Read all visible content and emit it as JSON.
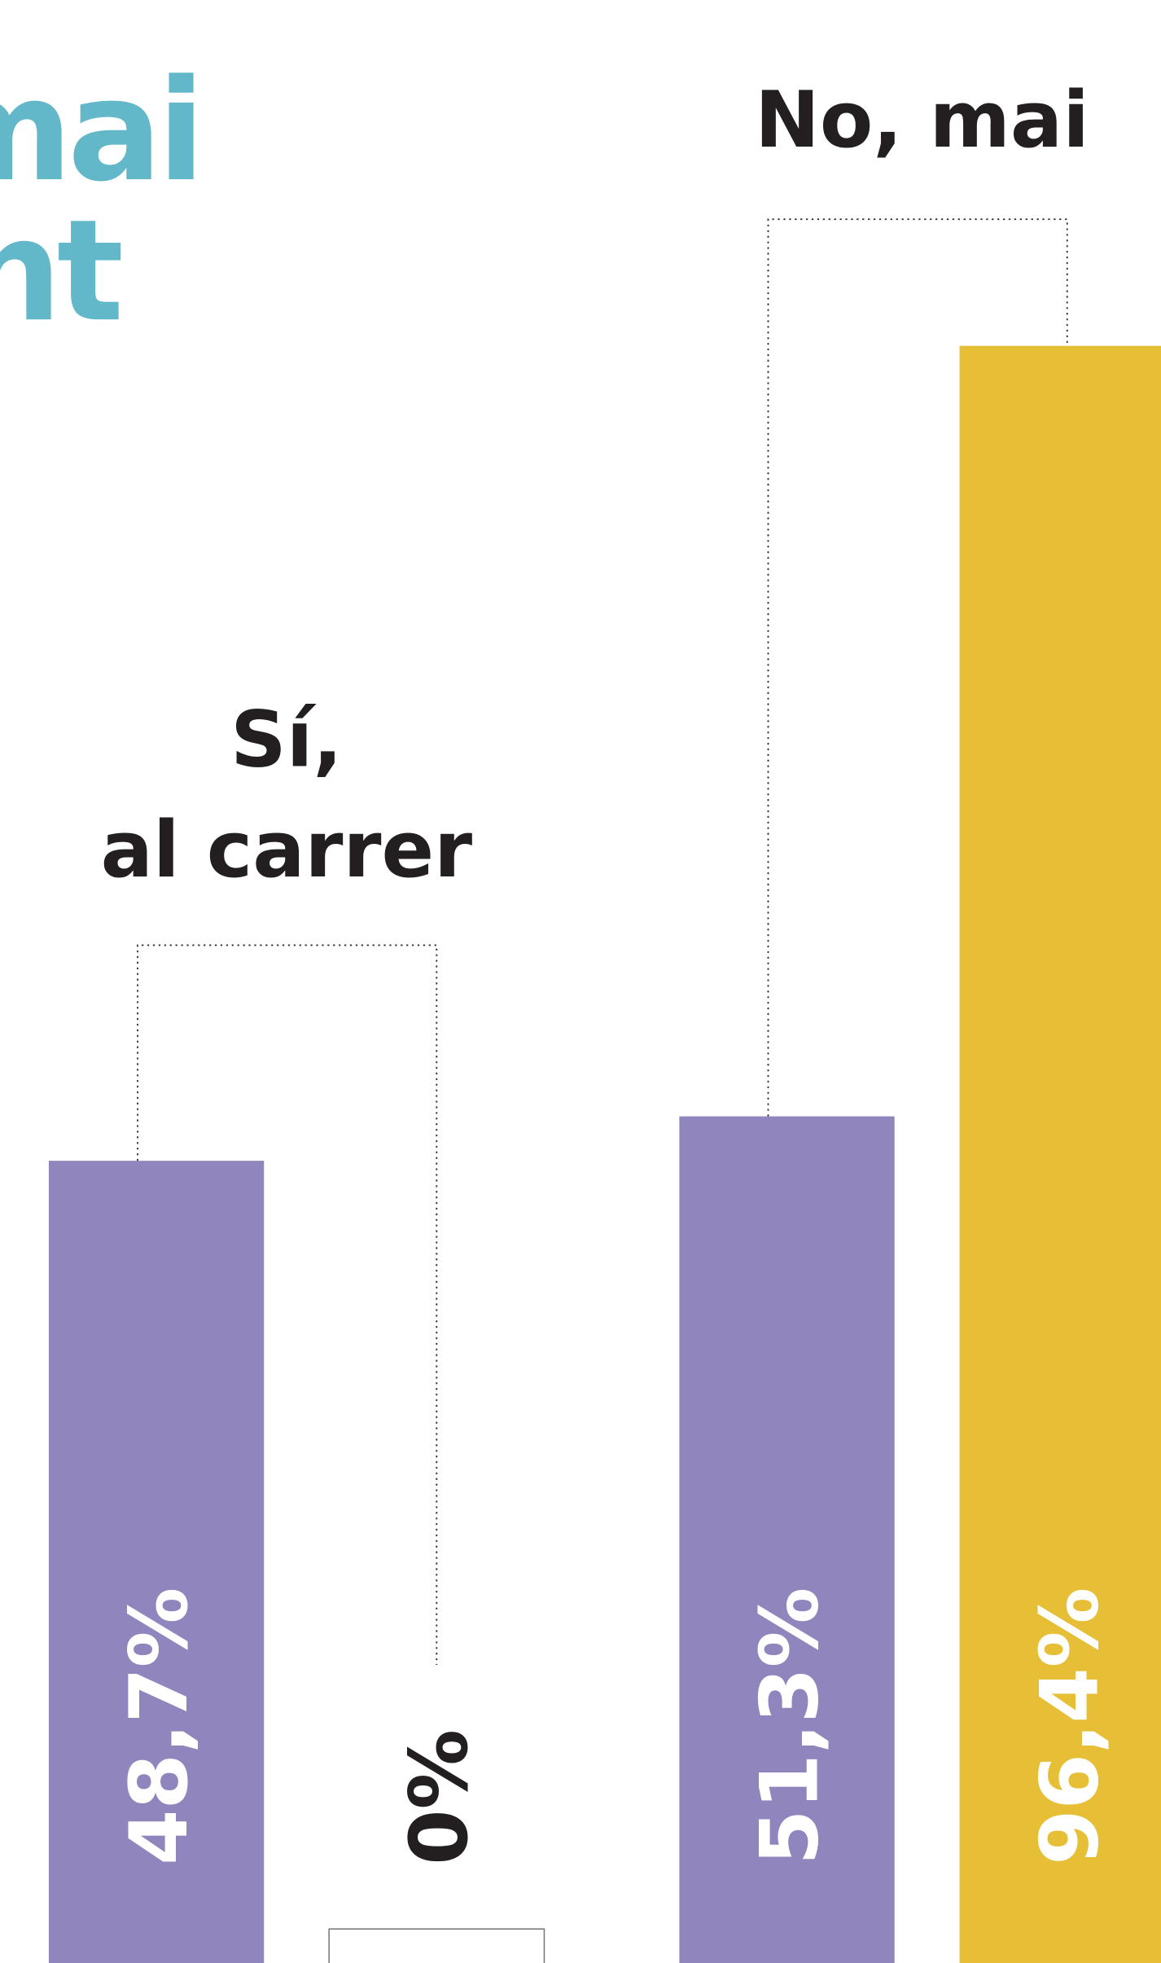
{
  "title_fragments": [
    "mai",
    "nt"
  ],
  "chart_data": {
    "type": "bar",
    "categories": [
      [
        "Sí,",
        "al carrer"
      ],
      [
        "No, mai"
      ]
    ],
    "series": [
      {
        "color": "#9185bd",
        "values": [
          48.7,
          51.3
        ],
        "value_labels": [
          "48,7%",
          "51,3%"
        ]
      },
      {
        "color": "#e6bf37",
        "values": [
          0,
          96.4
        ],
        "value_labels": [
          "0%",
          "96,4%"
        ]
      }
    ],
    "ylim": [
      0,
      100
    ]
  }
}
